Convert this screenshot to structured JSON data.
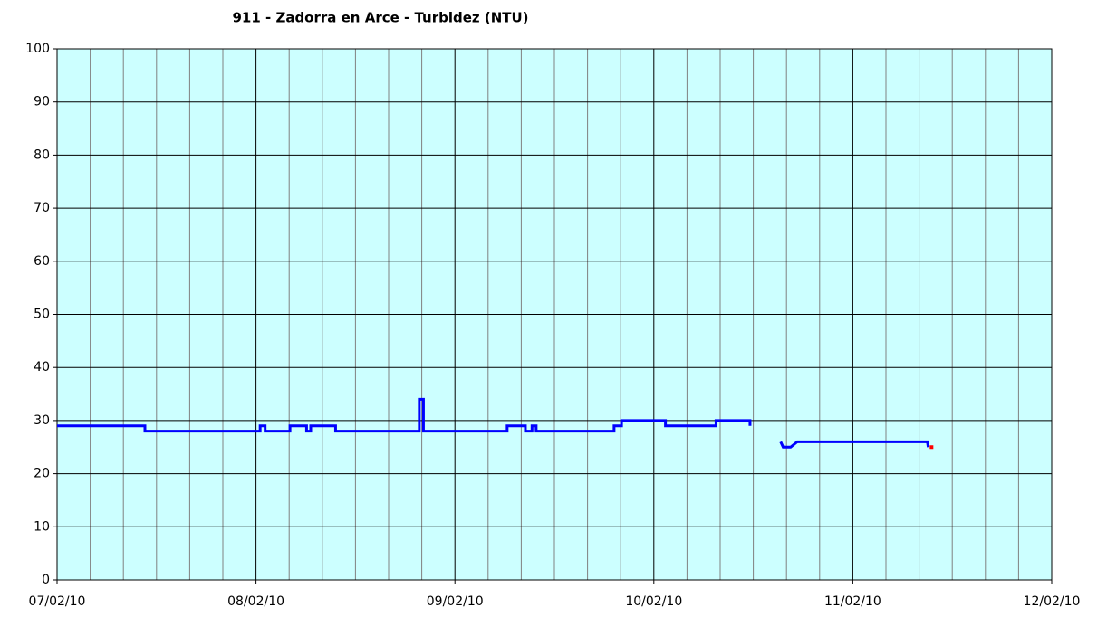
{
  "chart_data": {
    "type": "line",
    "title": "911 - Zadorra en Arce - Turbidez (NTU)",
    "xlim": [
      0,
      120
    ],
    "xticks": [
      {
        "value": 0,
        "label": "07/02/10"
      },
      {
        "value": 24,
        "label": "08/02/10"
      },
      {
        "value": 48,
        "label": "09/02/10"
      },
      {
        "value": 72,
        "label": "10/02/10"
      },
      {
        "value": 96,
        "label": "11/02/10"
      },
      {
        "value": 120,
        "label": "12/02/10"
      }
    ],
    "xminorticks": [
      4,
      8,
      12,
      16,
      20,
      28,
      32,
      36,
      40,
      44,
      52,
      56,
      60,
      64,
      68,
      76,
      80,
      84,
      88,
      92,
      100,
      104,
      108,
      112,
      116
    ],
    "ylim": [
      0,
      100
    ],
    "yticks": [
      0,
      10,
      20,
      30,
      40,
      50,
      60,
      70,
      80,
      90,
      100
    ],
    "grid": true,
    "background": "#ccffff",
    "series": [
      {
        "color": "#0000ff",
        "x": [
          0,
          10.6,
          10.6,
          24.5,
          24.5,
          25.1,
          25.1,
          28.1,
          28.1,
          30.1,
          30.1,
          30.6,
          30.6,
          33.6,
          33.6,
          43.7,
          43.7,
          44.2,
          44.2,
          54.3,
          54.3,
          56.5,
          56.5,
          57.3,
          57.3,
          57.8,
          57.8,
          67.2,
          67.2,
          68.1,
          68.1,
          73.4,
          73.4,
          79.5,
          79.5,
          83.6,
          83.6,
          null,
          87.3,
          87.6,
          88.5,
          89.3,
          105,
          105.1
        ],
        "values": [
          29,
          29,
          28,
          28,
          29,
          29,
          28,
          28,
          29,
          29,
          28,
          28,
          29,
          29,
          28,
          28,
          34,
          34,
          28,
          28,
          29,
          29,
          28,
          28,
          29,
          29,
          28,
          28,
          29,
          29,
          30,
          30,
          29,
          29,
          30,
          30,
          29,
          null,
          26,
          25,
          25,
          26,
          26,
          25
        ]
      },
      {
        "color": "#ff0000",
        "x": [
          105.5
        ],
        "values": [
          25
        ]
      }
    ]
  }
}
